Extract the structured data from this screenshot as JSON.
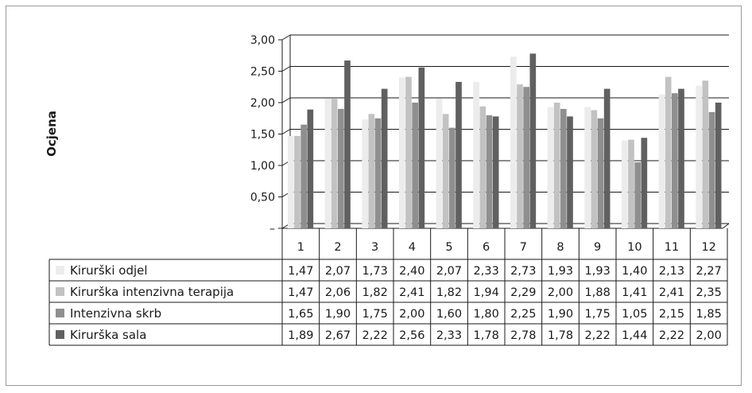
{
  "chart_data": {
    "type": "bar",
    "title": "",
    "ylabel": "Ocjena",
    "xlabel": "",
    "ylim": [
      0,
      3
    ],
    "y_ticks": [
      {
        "value": 3.0,
        "label": "3,00"
      },
      {
        "value": 2.5,
        "label": "2,50"
      },
      {
        "value": 2.0,
        "label": "2,00"
      },
      {
        "value": 1.5,
        "label": "1,50"
      },
      {
        "value": 1.0,
        "label": "1,00"
      },
      {
        "value": 0.5,
        "label": "0,50"
      },
      {
        "value": 0.0,
        "label": "–"
      }
    ],
    "grid": true,
    "legend": "data-table",
    "categories": [
      "1",
      "2",
      "3",
      "4",
      "5",
      "6",
      "7",
      "8",
      "9",
      "10",
      "11",
      "12"
    ],
    "series": [
      {
        "name": "Kirurški odjel",
        "color": "#ececec",
        "values": [
          1.47,
          2.07,
          1.73,
          2.4,
          2.07,
          2.33,
          2.73,
          1.93,
          1.93,
          1.4,
          2.13,
          2.27
        ],
        "labels": [
          "1,47",
          "2,07",
          "1,73",
          "2,40",
          "2,07",
          "2,33",
          "2,73",
          "1,93",
          "1,93",
          "1,40",
          "2,13",
          "2,27"
        ]
      },
      {
        "name": "Kirurška intenzivna terapija",
        "color": "#c2c2c2",
        "values": [
          1.47,
          2.06,
          1.82,
          2.41,
          1.82,
          1.94,
          2.29,
          2.0,
          1.88,
          1.41,
          2.41,
          2.35
        ],
        "labels": [
          "1,47",
          "2,06",
          "1,82",
          "2,41",
          "1,82",
          "1,94",
          "2,29",
          "2,00",
          "1,88",
          "1,41",
          "2,41",
          "2,35"
        ]
      },
      {
        "name": "Intenzivna skrb",
        "color": "#8f8f8f",
        "values": [
          1.65,
          1.9,
          1.75,
          2.0,
          1.6,
          1.8,
          2.25,
          1.9,
          1.75,
          1.05,
          2.15,
          1.85
        ],
        "labels": [
          "1,65",
          "1,90",
          "1,75",
          "2,00",
          "1,60",
          "1,80",
          "2,25",
          "1,90",
          "1,75",
          "1,05",
          "2,15",
          "1,85"
        ]
      },
      {
        "name": "Kirurška sala",
        "color": "#606060",
        "values": [
          1.89,
          2.67,
          2.22,
          2.56,
          2.33,
          1.78,
          2.78,
          1.78,
          2.22,
          1.44,
          2.22,
          2.0
        ],
        "labels": [
          "1,89",
          "2,67",
          "2,22",
          "2,56",
          "2,33",
          "1,78",
          "2,78",
          "1,78",
          "2,22",
          "1,44",
          "2,22",
          "2,00"
        ]
      }
    ]
  }
}
